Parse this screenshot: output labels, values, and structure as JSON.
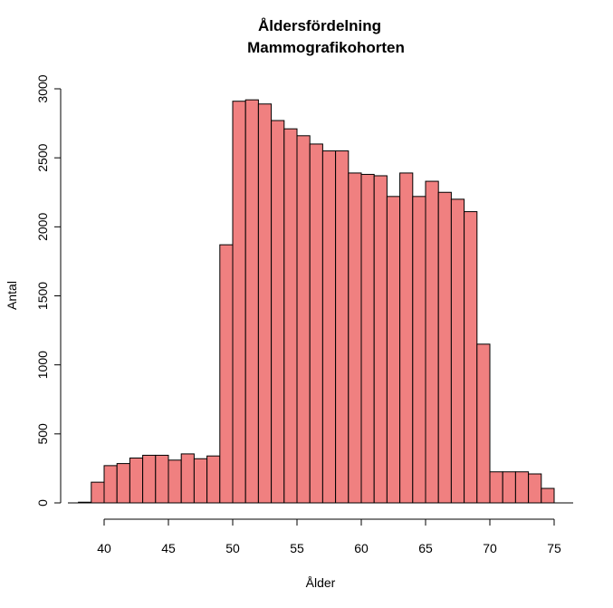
{
  "chart_data": {
    "type": "bar",
    "title": "Åldersfördelning",
    "subtitle": "Mammografikohorten",
    "xlabel": "Ålder",
    "ylabel": "Antal",
    "xlim": [
      37.5,
      76.5
    ],
    "ylim": [
      0,
      3000
    ],
    "bin_width": 1,
    "bar_color": "#F08080",
    "x_ticks": [
      "40",
      "45",
      "50",
      "55",
      "60",
      "65",
      "70",
      "75"
    ],
    "y_ticks": [
      "0",
      "500",
      "1000",
      "1500",
      "2000",
      "2500",
      "3000"
    ],
    "bins": [
      {
        "from": 38,
        "to": 39,
        "count": 5
      },
      {
        "from": 39,
        "to": 40,
        "count": 150
      },
      {
        "from": 40,
        "to": 41,
        "count": 270
      },
      {
        "from": 41,
        "to": 42,
        "count": 285
      },
      {
        "from": 42,
        "to": 43,
        "count": 325
      },
      {
        "from": 43,
        "to": 44,
        "count": 345
      },
      {
        "from": 44,
        "to": 45,
        "count": 345
      },
      {
        "from": 45,
        "to": 46,
        "count": 310
      },
      {
        "from": 46,
        "to": 47,
        "count": 355
      },
      {
        "from": 47,
        "to": 48,
        "count": 320
      },
      {
        "from": 48,
        "to": 49,
        "count": 340
      },
      {
        "from": 49,
        "to": 50,
        "count": 1870
      },
      {
        "from": 50,
        "to": 51,
        "count": 2910
      },
      {
        "from": 51,
        "to": 52,
        "count": 2920
      },
      {
        "from": 52,
        "to": 53,
        "count": 2890
      },
      {
        "from": 53,
        "to": 54,
        "count": 2770
      },
      {
        "from": 54,
        "to": 55,
        "count": 2710
      },
      {
        "from": 55,
        "to": 56,
        "count": 2660
      },
      {
        "from": 56,
        "to": 57,
        "count": 2600
      },
      {
        "from": 57,
        "to": 58,
        "count": 2550
      },
      {
        "from": 58,
        "to": 59,
        "count": 2550
      },
      {
        "from": 59,
        "to": 60,
        "count": 2390
      },
      {
        "from": 60,
        "to": 61,
        "count": 2380
      },
      {
        "from": 61,
        "to": 62,
        "count": 2370
      },
      {
        "from": 62,
        "to": 63,
        "count": 2220
      },
      {
        "from": 63,
        "to": 64,
        "count": 2390
      },
      {
        "from": 64,
        "to": 65,
        "count": 2220
      },
      {
        "from": 65,
        "to": 66,
        "count": 2330
      },
      {
        "from": 66,
        "to": 67,
        "count": 2250
      },
      {
        "from": 67,
        "to": 68,
        "count": 2200
      },
      {
        "from": 68,
        "to": 69,
        "count": 2110
      },
      {
        "from": 69,
        "to": 70,
        "count": 1150
      },
      {
        "from": 70,
        "to": 71,
        "count": 225
      },
      {
        "from": 71,
        "to": 72,
        "count": 225
      },
      {
        "from": 72,
        "to": 73,
        "count": 225
      },
      {
        "from": 73,
        "to": 74,
        "count": 210
      },
      {
        "from": 74,
        "to": 75,
        "count": 105
      }
    ]
  }
}
